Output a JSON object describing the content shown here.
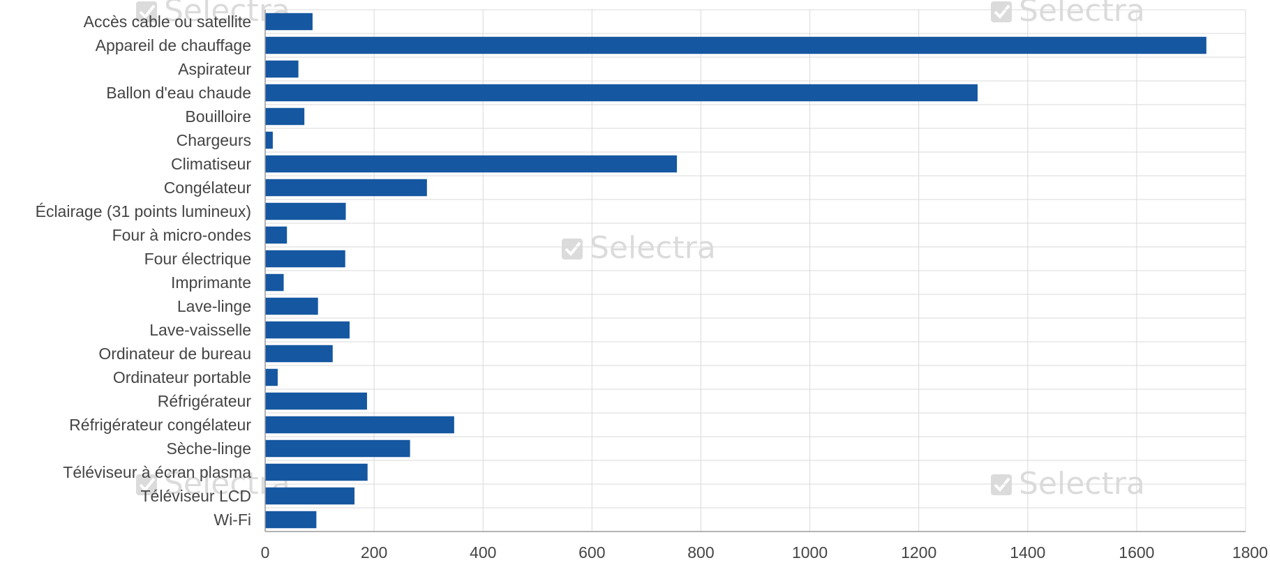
{
  "watermark": {
    "text": "Selectra",
    "icon": "check-box-icon",
    "color": "#cfcfcf"
  },
  "colors": {
    "bar": "#1557a0",
    "grid": "#d9d9d9",
    "text": "#444444",
    "background": "#ffffff"
  },
  "chart_data": {
    "type": "bar",
    "orientation": "horizontal",
    "categories": [
      "Accès cable ou satellite",
      "Appareil de chauffage",
      "Aspirateur",
      "Ballon d'eau chaude",
      "Bouilloire",
      "Chargeurs",
      "Climatiseur",
      "Congélateur",
      "Éclairage (31 points lumineux)",
      "Four à micro-ondes",
      "Four électrique",
      "Imprimante",
      "Lave-linge",
      "Lave-vaisselle",
      "Ordinateur de bureau",
      "Ordinateur portable",
      "Réfrigérateur",
      "Réfrigérateur congélateur",
      "Sèche-linge",
      "Téléviseur à écran plasma",
      "Téléviseur LCD",
      "Wi-Fi"
    ],
    "values": [
      87,
      1728,
      61,
      1308,
      72,
      14,
      756,
      297,
      148,
      40,
      147,
      34,
      97,
      155,
      124,
      23,
      187,
      347,
      266,
      188,
      164,
      94
    ],
    "xlim": [
      0,
      1800
    ],
    "xticks": [
      0,
      200,
      400,
      600,
      800,
      1000,
      1200,
      1400,
      1600,
      1800
    ],
    "grid": true,
    "title": "",
    "xlabel": "",
    "ylabel": ""
  }
}
